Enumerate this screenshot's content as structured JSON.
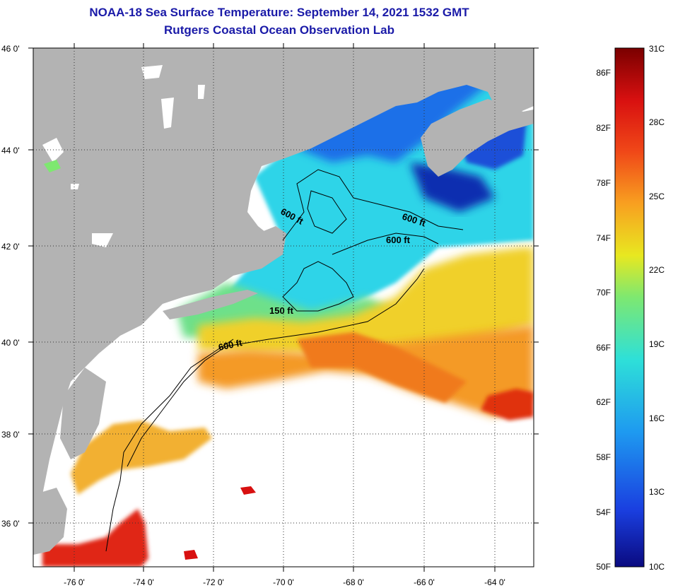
{
  "header": {
    "title_line1": "NOAA-18 Sea Surface Temperature:  September 14, 2021 1532 GMT",
    "title_line2": "Rutgers Coastal Ocean Observation Lab"
  },
  "map": {
    "lat_labels": [
      "46 0'",
      "44 0'",
      "42 0'",
      "40 0'",
      "38 0'",
      "36 0'"
    ],
    "lon_labels": [
      "-76 0'",
      "-74 0'",
      "-72 0'",
      "-70 0'",
      "-68 0'",
      "-66 0'",
      "-64 0'"
    ],
    "contour_labels": [
      "600 ft",
      "600 ft",
      "600 ft",
      "150 ft",
      "600 ft"
    ],
    "colors": {
      "land": "#b3b3b3",
      "no_data": "#ffffff",
      "grid": "#333333"
    }
  },
  "colorbar": {
    "fahrenheit_labels": [
      "86F",
      "82F",
      "78F",
      "74F",
      "70F",
      "66F",
      "62F",
      "58F",
      "54F",
      "50F"
    ],
    "celsius_labels": [
      "31C",
      "28C",
      "25C",
      "22C",
      "19C",
      "16C",
      "13C",
      "10C"
    ],
    "range_celsius": [
      10,
      31
    ],
    "gradient_stops": [
      "#0a0a80",
      "#1a3fe0",
      "#1e9af0",
      "#2ee0d8",
      "#7ee870",
      "#e8e820",
      "#f8a020",
      "#f04818",
      "#d81010",
      "#7a0000"
    ]
  }
}
